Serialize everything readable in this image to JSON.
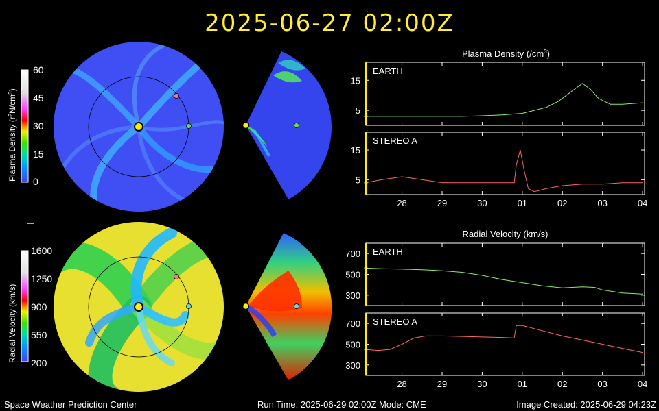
{
  "header": {
    "timestamp": "2025-06-27  02:00Z",
    "color": "#ffee33"
  },
  "colorbars": {
    "density": {
      "label_prefix": "Plasma Density (r",
      "label_suffix": "N/cm",
      "superscript": "2",
      "superscript2": "3",
      "close": ")",
      "ticks": [
        "60",
        "45",
        "30",
        "15",
        "0"
      ]
    },
    "velocity": {
      "label": "Radial Velocity (km/s)",
      "ticks": [
        "1600",
        "1250",
        "900",
        "550",
        "200"
      ]
    },
    "divider": "—"
  },
  "panels": {
    "density_title": "Plasma Density (/cm",
    "density_title_sup": "3",
    "density_title_close": ")",
    "velocity_title": "Radial Velocity (km/s)",
    "earth_label": "EARTH",
    "stereo_label": "STEREO A"
  },
  "chart_data": [
    {
      "type": "line",
      "title": "Plasma Density (/cm3)",
      "series": [
        {
          "name": "EARTH",
          "color": "#88ee66",
          "x": [
            27.1,
            27.5,
            28.0,
            28.5,
            29.0,
            29.5,
            30.0,
            30.5,
            31.0,
            31.3,
            31.6,
            31.9,
            32.1,
            32.3,
            32.5,
            32.7,
            32.9,
            33.2,
            33.5,
            34.0
          ],
          "values": [
            3,
            3,
            3,
            3,
            3,
            3,
            3.2,
            3.5,
            4,
            5,
            6,
            8,
            10,
            12,
            14,
            12,
            9,
            7,
            7,
            7.5
          ]
        }
      ],
      "yticks": [
        "15",
        "5"
      ],
      "ylim": [
        0,
        21
      ]
    },
    {
      "type": "line",
      "series": [
        {
          "name": "STEREO A",
          "color": "#ff6666",
          "x": [
            27.1,
            27.5,
            28.0,
            28.5,
            29.0,
            29.5,
            30.0,
            30.5,
            30.8,
            30.85,
            30.95,
            31.05,
            31.15,
            31.3,
            31.6,
            32.0,
            32.5,
            33.0,
            33.5,
            34.0
          ],
          "values": [
            4,
            5,
            6,
            5,
            4,
            4,
            4,
            4,
            4,
            10,
            15,
            8,
            2,
            1,
            2,
            3,
            3.5,
            3.5,
            4,
            4
          ]
        }
      ],
      "yticks": [
        "15",
        "5"
      ],
      "ylim": [
        0,
        21
      ],
      "xticks": [
        "28",
        "29",
        "30",
        "01",
        "02",
        "03",
        "04"
      ]
    },
    {
      "type": "line",
      "title": "Radial Velocity (km/s)",
      "series": [
        {
          "name": "EARTH",
          "color": "#88ee66",
          "x": [
            27.1,
            27.5,
            28.0,
            28.5,
            29.0,
            29.5,
            30.0,
            30.5,
            31.0,
            31.5,
            32.0,
            32.5,
            32.8,
            33.0,
            33.5,
            34.0
          ],
          "values": [
            560,
            555,
            550,
            545,
            535,
            520,
            490,
            450,
            420,
            390,
            370,
            380,
            375,
            350,
            320,
            310
          ]
        }
      ],
      "yticks": [
        "700",
        "500",
        "300"
      ],
      "ylim": [
        200,
        800
      ]
    },
    {
      "type": "line",
      "series": [
        {
          "name": "STEREO A",
          "color": "#ff6666",
          "x": [
            27.1,
            27.4,
            27.7,
            28.0,
            28.3,
            28.6,
            29.0,
            29.5,
            30.0,
            30.5,
            30.8,
            30.85,
            31.0,
            31.3,
            31.6,
            32.0,
            32.5,
            33.0,
            33.5,
            34.0
          ],
          "values": [
            450,
            440,
            450,
            500,
            560,
            580,
            580,
            575,
            570,
            565,
            560,
            680,
            680,
            650,
            620,
            580,
            540,
            500,
            460,
            420
          ]
        }
      ],
      "yticks": [
        "700",
        "500",
        "300"
      ],
      "ylim": [
        200,
        800
      ],
      "xticks": [
        "28",
        "29",
        "30",
        "01",
        "02",
        "03",
        "04"
      ]
    }
  ],
  "footer": {
    "left": "Space Weather Prediction Center",
    "center": "Run Time: 2025-06-29 02:00Z  Mode: CME",
    "right": "Image Created: 2025-06-29 04:23Z"
  }
}
